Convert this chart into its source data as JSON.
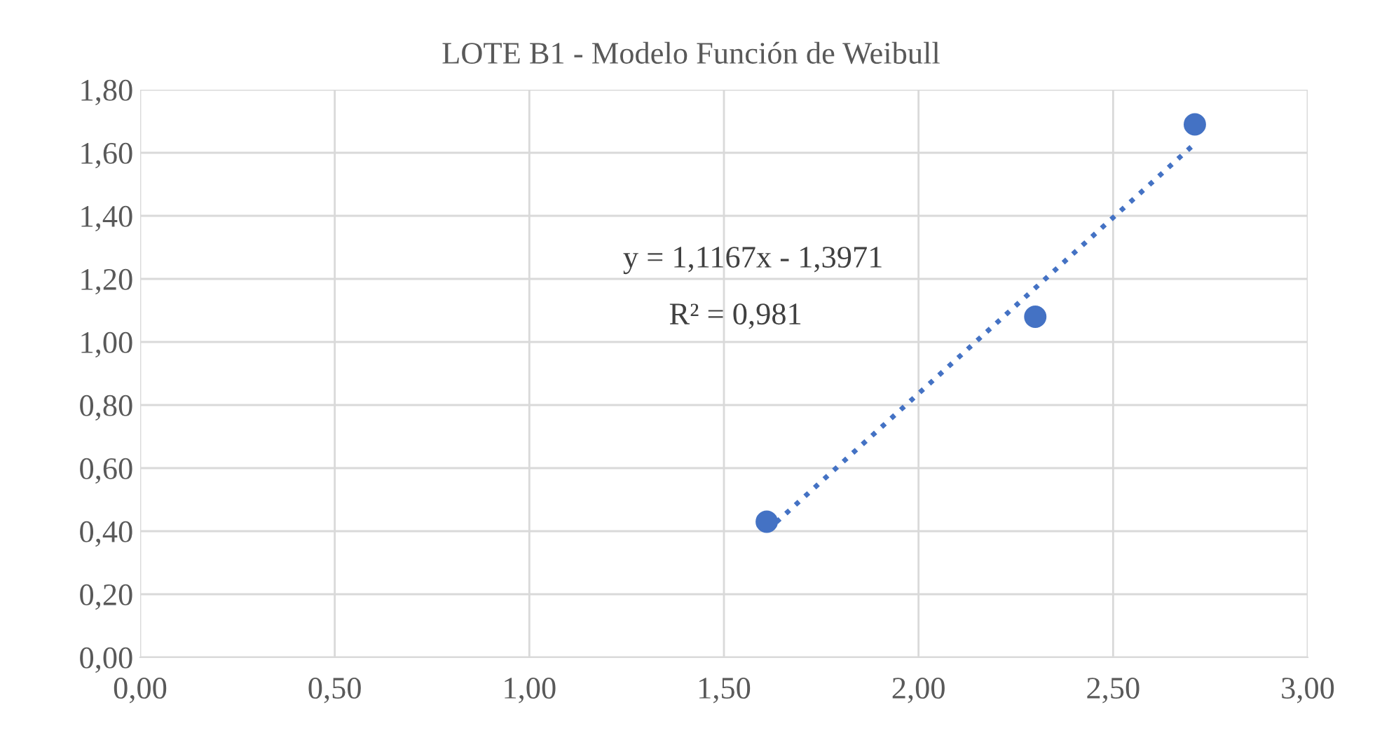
{
  "chart_data": {
    "type": "scatter",
    "title": "LOTE B1 - Modelo Función de Weibull",
    "series": [
      {
        "color": "#4472c4",
        "marker": "circle",
        "x": [
          1.61,
          2.3,
          2.71
        ],
        "values": [
          0.43,
          1.08,
          1.69
        ]
      },
      {
        "type": "line",
        "color": "#4472c4",
        "line_style": "dotted",
        "marker": "none",
        "x": [
          1.61,
          2.71
        ],
        "values": [
          0.401,
          1.629
        ]
      }
    ],
    "annotations": [
      "y = 1,1167x - 1,3971",
      "R² = 0,981"
    ],
    "xlim": [
      0,
      3
    ],
    "ylim": [
      0,
      1.8
    ],
    "xticks": [
      {
        "value": 0,
        "label": "0,00"
      },
      {
        "value": 0.5,
        "label": "0,50"
      },
      {
        "value": 1,
        "label": "1,00"
      },
      {
        "value": 1.5,
        "label": "1,50"
      },
      {
        "value": 2,
        "label": "2,00"
      },
      {
        "value": 2.5,
        "label": "2,50"
      },
      {
        "value": 3,
        "label": "3,00"
      }
    ],
    "yticks": [
      {
        "value": 0,
        "label": "0,00"
      },
      {
        "value": 0.2,
        "label": "0,20"
      },
      {
        "value": 0.4,
        "label": "0,40"
      },
      {
        "value": 0.6,
        "label": "0,60"
      },
      {
        "value": 0.8,
        "label": "0,80"
      },
      {
        "value": 1.0,
        "label": "1,00"
      },
      {
        "value": 1.2,
        "label": "1,20"
      },
      {
        "value": 1.4,
        "label": "1,40"
      },
      {
        "value": 1.6,
        "label": "1,60"
      },
      {
        "value": 1.8,
        "label": "1,80"
      }
    ],
    "grid": true,
    "legend": false
  }
}
